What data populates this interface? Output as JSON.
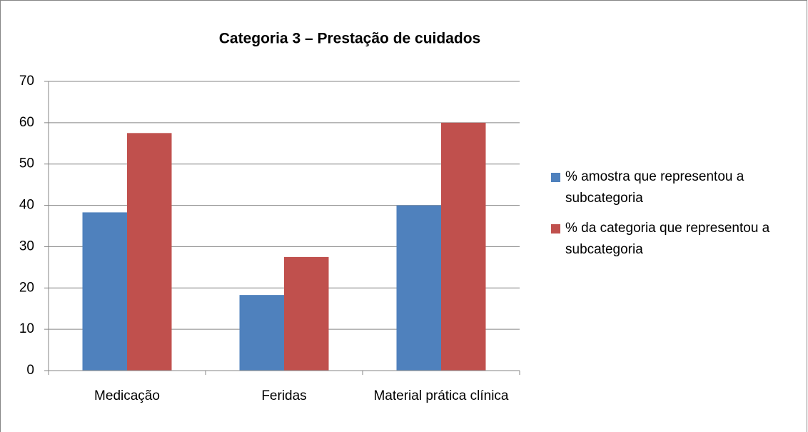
{
  "chart_data": {
    "type": "bar",
    "title": "Categoria 3 – Prestação de cuidados",
    "categories": [
      "Medicação",
      "Feridas",
      "Material prática clínica"
    ],
    "series": [
      {
        "name": "% amostra que representou a subcategoria",
        "color": "#4f81bd",
        "values": [
          38.3,
          18.3,
          40
        ]
      },
      {
        "name": "% da categoria que representou a subcategoria",
        "color": "#c0504d",
        "values": [
          57.5,
          27.5,
          60
        ]
      }
    ],
    "ylim": [
      0,
      70
    ],
    "yticks": [
      0,
      10,
      20,
      30,
      40,
      50,
      60,
      70
    ],
    "grid": true,
    "legend": "right"
  }
}
